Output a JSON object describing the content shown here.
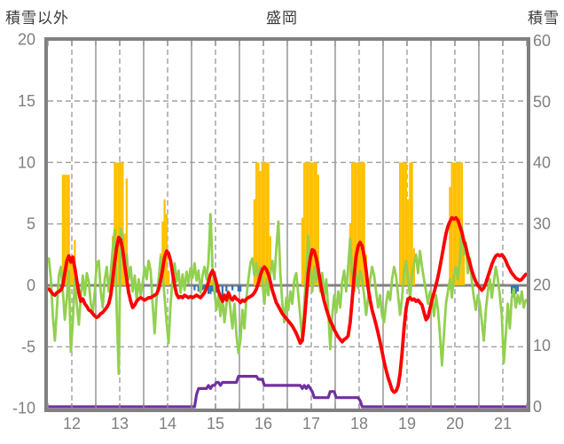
{
  "titles": {
    "left_axis": "積雪以外",
    "station": "盛岡",
    "right_axis": "積雪"
  },
  "chart_data": {
    "type": "line",
    "subtype": "combo-bar-line-dual-axis",
    "title": "盛岡",
    "x_start_day": 12,
    "days": 10,
    "x_tick_labels": [
      "12",
      "13",
      "14",
      "15",
      "16",
      "17",
      "18",
      "19",
      "20",
      "21"
    ],
    "left_axis": {
      "title": "積雪以外",
      "range": [
        -10,
        20
      ],
      "ticks": [
        20,
        15,
        10,
        5,
        0,
        -5,
        -10
      ]
    },
    "right_axis": {
      "title": "積雪",
      "range": [
        0,
        60
      ],
      "ticks": [
        60,
        50,
        40,
        30,
        20,
        10,
        0
      ]
    },
    "grid": {
      "border_color": "#808080",
      "zero_line_color": "#808080",
      "line_color": "#a0a0a0",
      "dashed": true
    },
    "series": [
      {
        "name": "sunshine",
        "type": "bar",
        "axis": "left",
        "color": "#FFC000",
        "values": [
          0,
          0,
          0,
          0,
          0,
          0,
          0,
          9,
          9,
          9,
          9,
          2.4,
          2.4,
          3.7,
          0.6,
          0,
          0,
          0,
          0,
          0,
          0,
          0,
          0,
          0,
          0,
          0,
          0,
          0,
          0,
          0,
          0,
          0,
          4,
          10,
          10,
          10,
          10,
          10,
          4.2,
          8.7,
          0,
          0,
          0,
          0,
          0,
          0,
          0,
          0,
          0,
          0,
          0,
          0,
          0,
          0,
          0,
          0,
          2.6,
          5.2,
          7,
          5.8,
          1.2,
          0,
          0,
          0,
          0,
          0,
          0,
          0,
          0,
          0,
          0,
          0,
          0,
          0,
          0,
          0,
          0,
          0,
          0,
          0,
          0,
          0.5,
          0.4,
          0,
          0,
          0,
          0,
          0,
          0,
          0,
          0,
          0,
          0,
          0,
          0,
          0,
          0,
          0,
          0,
          0,
          0,
          0,
          0,
          7,
          10,
          10,
          9.3,
          10,
          10,
          10,
          10,
          4,
          0,
          0,
          0,
          0,
          0,
          0,
          0,
          0,
          0,
          0,
          0,
          0,
          0,
          0,
          0,
          5.5,
          10,
          10,
          10,
          10,
          10,
          10,
          10,
          9,
          0,
          0,
          0,
          0,
          0,
          0,
          0,
          0,
          0,
          0,
          0,
          0,
          0,
          0,
          0,
          5,
          10,
          10,
          10,
          10,
          10,
          10,
          10,
          2.5,
          0,
          0,
          0,
          0,
          0,
          0,
          0,
          0,
          0,
          0,
          0,
          0,
          0,
          0,
          0,
          0,
          10,
          10,
          10,
          10,
          7,
          10,
          10,
          3,
          0,
          0,
          0,
          0,
          0,
          0,
          0,
          0,
          0,
          0,
          0,
          0,
          0,
          0,
          0,
          0,
          0,
          8,
          10,
          10,
          10,
          10,
          10,
          10,
          3,
          0,
          0,
          0,
          0,
          0,
          0,
          0,
          0,
          0,
          0,
          0,
          0,
          0,
          0,
          0,
          0,
          0,
          0,
          0,
          0,
          0,
          0,
          0,
          0,
          0,
          0,
          0,
          0,
          0,
          0,
          0
        ]
      },
      {
        "name": "precipitation",
        "type": "bar",
        "axis": "left",
        "direction": "down",
        "color": "#2E75B6",
        "values": [
          0,
          0,
          0,
          0,
          0,
          0,
          0,
          0,
          0,
          0,
          0,
          0,
          0,
          0,
          0,
          0,
          0,
          0,
          0,
          0,
          0,
          0,
          0,
          0,
          0,
          0,
          0,
          0,
          0,
          0,
          0,
          0,
          0,
          0,
          0,
          0,
          0,
          0,
          0,
          0,
          0,
          0,
          0,
          0,
          0,
          0,
          0,
          0,
          0,
          0,
          0,
          0,
          0,
          0,
          0,
          0,
          0,
          0,
          0,
          0,
          0,
          0,
          0,
          0,
          0,
          0,
          0,
          0,
          0,
          0,
          0,
          0,
          0,
          0.4,
          0,
          0.5,
          0,
          0.4,
          0.3,
          0,
          0.7,
          0.7,
          0.5,
          0,
          0.6,
          0.5,
          0,
          1.5,
          0,
          0.5,
          0,
          0,
          0.4,
          0,
          0,
          0.5,
          0.5,
          0,
          0,
          0,
          0,
          0,
          0,
          0,
          0,
          0,
          0,
          0,
          0,
          0,
          0,
          0,
          0,
          0,
          0,
          0,
          0,
          0,
          0,
          0,
          0,
          0,
          0,
          0,
          0,
          0,
          0,
          0,
          0,
          0,
          0,
          0,
          0,
          0,
          0,
          0,
          0,
          0,
          0,
          0,
          0,
          0,
          0,
          0,
          0,
          0,
          0,
          0,
          0,
          0,
          0,
          0,
          0,
          0,
          0,
          0,
          0,
          0,
          0,
          0,
          0,
          0,
          0,
          0,
          0,
          0,
          0,
          0,
          0,
          0,
          0,
          0,
          0,
          0,
          0,
          0,
          0,
          0,
          0,
          0,
          0,
          0,
          0,
          0,
          0,
          0,
          0,
          0,
          0,
          0,
          0,
          0,
          0,
          0,
          0,
          0,
          0,
          0,
          0,
          0,
          0,
          0,
          0,
          0,
          0,
          0,
          0,
          0,
          0,
          0,
          0,
          0,
          0,
          0,
          0,
          0,
          0,
          0,
          0,
          0,
          0,
          0,
          0,
          0,
          0,
          0,
          0,
          0,
          0,
          0,
          0,
          0,
          0.7,
          1.0,
          0.7,
          0.5,
          0,
          0,
          0,
          0
        ]
      },
      {
        "name": "green_line",
        "type": "line",
        "axis": "left",
        "color": "#92D050",
        "width": 2.8,
        "values": [
          2.2,
          0.5,
          -2.5,
          -4.5,
          -2.0,
          0.8,
          1.5,
          -0.5,
          -2.8,
          -1.0,
          1.2,
          -5.4,
          -3.0,
          0.5,
          -1.5,
          -3.2,
          -1.0,
          0.8,
          -0.8,
          1.0,
          0.3,
          -1.5,
          -2.2,
          -0.5,
          1.8,
          2.0,
          -0.5,
          -1.8,
          0.5,
          1.5,
          -0.5,
          1.0,
          3.0,
          4.5,
          -2.0,
          -7.2,
          4.6,
          3.8,
          1.5,
          2.5,
          0.5,
          1.5,
          -0.5,
          0.8,
          -1.2,
          0.5,
          -0.8,
          0.2,
          1.5,
          0.5,
          2.0,
          1.2,
          -1.5,
          -3.9,
          -1.0,
          0.5,
          2.3,
          1.0,
          -1.0,
          -3.0,
          -4.7,
          -1.5,
          0.5,
          1.8,
          0.3,
          1.2,
          -0.6,
          0.9,
          -0.4,
          1.1,
          0.2,
          1.4,
          0.6,
          1.8,
          0.4,
          1.2,
          -0.6,
          0.8,
          1.5,
          0.5,
          2.0,
          5.8,
          1.5,
          -0.5,
          -2.0,
          -0.8,
          -2.5,
          -1.0,
          -3.0,
          -1.5,
          -0.5,
          -2.0,
          -3.5,
          -1.5,
          -4.0,
          -5.5,
          -4.5,
          -2.0,
          -3.5,
          -1.0,
          0.5,
          1.8,
          2.2,
          0.8,
          1.8,
          0.5,
          1.5,
          0.3,
          -1.5,
          0.5,
          -0.8,
          1.0,
          2.0,
          0.5,
          3.0,
          5.2,
          1.0,
          -1.5,
          -3.0,
          -1.0,
          -2.0,
          -0.5,
          -1.5,
          0.5,
          1.0,
          -0.8,
          -2.5,
          -4.5,
          -1.5,
          1.0,
          4.0,
          1.5,
          -0.5,
          1.5,
          0.3,
          2.0,
          -0.5,
          1.0,
          -1.0,
          0.5,
          -2.0,
          -5.2,
          -2.5,
          -0.8,
          -2.2,
          -0.5,
          -1.8,
          0.3,
          1.2,
          -0.5,
          1.5,
          3.8,
          0.8,
          -0.5,
          1.0,
          -0.2,
          1.2,
          0.4,
          -0.8,
          -2.4,
          -1.0,
          0.5,
          1.5,
          0.8,
          -0.5,
          -1.8,
          -0.8,
          -2.5,
          -3.0,
          -1.5,
          -0.5,
          -1.2,
          0.5,
          1.5,
          0.8,
          -0.8,
          -2.4,
          -1.0,
          1.0,
          2.0,
          0.5,
          -1.0,
          0.8,
          1.8,
          2.5,
          1.0,
          2.8,
          1.5,
          0.5,
          -0.5,
          -1.5,
          -0.5,
          -1.0,
          -2.5,
          -0.8,
          -2.0,
          -4.0,
          -6.5,
          -4.0,
          -1.5,
          -0.5,
          0.5,
          -1.0,
          0.8,
          1.5,
          0.5,
          2.0,
          4.8,
          2.5,
          3.5,
          1.0,
          2.2,
          0.3,
          -1.0,
          -2.0,
          -0.8,
          -1.5,
          -3.0,
          -4.5,
          -2.0,
          -0.5,
          0.5,
          -1.0,
          0.3,
          1.5,
          0.5,
          -0.8,
          -2.5,
          -6.3,
          -4.0,
          -1.5,
          -3.5,
          -1.0,
          -0.3,
          -1.8,
          -0.8,
          -1.5,
          -0.5,
          -1.8,
          -1.2
        ]
      },
      {
        "name": "temperature",
        "type": "line",
        "axis": "left",
        "color": "#FF0000",
        "width": 3.8,
        "values": [
          -0.3,
          -0.5,
          -0.7,
          -0.8,
          -0.6,
          -0.5,
          -0.4,
          0.0,
          1.0,
          2.0,
          2.4,
          1.9,
          2.3,
          1.4,
          0.4,
          -0.6,
          -1.3,
          -1.1,
          -1.5,
          -1.7,
          -2.0,
          -2.1,
          -2.3,
          -2.5,
          -2.6,
          -2.5,
          -2.3,
          -2.2,
          -2.0,
          -1.8,
          -1.5,
          -0.8,
          0.5,
          1.9,
          3.1,
          3.9,
          3.7,
          2.9,
          1.6,
          0.5,
          -0.6,
          -1.3,
          -1.8,
          -1.6,
          -1.3,
          -1.1,
          -1.0,
          -1.1,
          -1.2,
          -1.1,
          -1.0,
          -1.0,
          -0.9,
          -0.8,
          -0.7,
          -0.3,
          0.4,
          1.3,
          2.3,
          2.8,
          2.6,
          2.0,
          1.0,
          0.0,
          -0.7,
          -1.0,
          -0.9,
          -1.0,
          -0.8,
          -0.9,
          -1.0,
          -0.9,
          -1.0,
          -0.9,
          -0.8,
          -0.9,
          -1.0,
          -0.8,
          -0.6,
          -0.2,
          0.3,
          0.9,
          1.2,
          0.8,
          0.2,
          -0.5,
          -0.9,
          -1.3,
          -0.8,
          -1.2,
          -0.6,
          -1.0,
          -1.2,
          -0.9,
          -1.1,
          -1.2,
          -1.4,
          -1.2,
          -1.3,
          -1.1,
          -1.0,
          -0.9,
          -0.8,
          -0.6,
          -0.3,
          0.2,
          0.8,
          1.3,
          1.5,
          1.3,
          0.9,
          0.3,
          -0.4,
          -0.9,
          -1.4,
          -1.7,
          -2.0,
          -2.3,
          -2.5,
          -2.7,
          -2.9,
          -3.1,
          -3.3,
          -3.6,
          -3.9,
          -4.3,
          -4.7,
          -4.5,
          -3.0,
          -1.0,
          1.0,
          2.2,
          2.9,
          2.8,
          2.2,
          1.3,
          0.3,
          -0.6,
          -1.3,
          -1.9,
          -2.4,
          -2.9,
          -3.2,
          -3.6,
          -3.9,
          -4.2,
          -4.4,
          -4.6,
          -4.4,
          -4.3,
          -4.1,
          -3.0,
          -1.2,
          0.8,
          2.4,
          3.2,
          3.5,
          3.2,
          2.4,
          1.2,
          -0.2,
          -1.2,
          -2.0,
          -2.6,
          -3.2,
          -3.9,
          -4.6,
          -5.4,
          -6.2,
          -6.9,
          -7.5,
          -8.0,
          -8.5,
          -8.7,
          -8.6,
          -8.2,
          -7.2,
          -5.5,
          -3.5,
          -1.9,
          -1.1,
          -1.0,
          -1.2,
          -1.1,
          -1.3,
          -1.2,
          -1.4,
          -1.6,
          -2.2,
          -2.8,
          -2.6,
          -1.9,
          -1.2,
          -0.6,
          0.0,
          0.7,
          1.5,
          2.4,
          3.3,
          4.2,
          4.8,
          5.2,
          5.5,
          5.4,
          5.5,
          5.3,
          4.8,
          4.3,
          3.6,
          3.1,
          2.4,
          1.8,
          1.2,
          0.7,
          0.3,
          0.0,
          -0.2,
          -0.4,
          -0.2,
          0.2,
          0.7,
          1.2,
          1.7,
          2.1,
          2.4,
          2.5,
          2.4,
          2.5,
          2.3,
          2.0,
          1.6,
          1.3,
          1.0,
          0.8,
          0.6,
          0.5,
          0.4,
          0.5,
          0.7,
          0.9
        ]
      },
      {
        "name": "snow_depth",
        "type": "line",
        "axis": "right",
        "color": "#7030A0",
        "width": 3.2,
        "values": [
          0,
          0,
          0,
          0,
          0,
          0,
          0,
          0,
          0,
          0,
          0,
          0,
          0,
          0,
          0,
          0,
          0,
          0,
          0,
          0,
          0,
          0,
          0,
          0,
          0,
          0,
          0,
          0,
          0,
          0,
          0,
          0,
          0,
          0,
          0,
          0,
          0,
          0,
          0,
          0,
          0,
          0,
          0,
          0,
          0,
          0,
          0,
          0,
          0,
          0,
          0,
          0,
          0,
          0,
          0,
          0,
          0,
          0,
          0,
          0,
          0,
          0,
          0,
          0,
          0,
          0,
          0,
          0,
          0,
          0,
          0,
          0,
          0,
          0,
          2,
          3,
          3,
          3,
          3,
          3,
          3.5,
          3,
          3.5,
          3.5,
          4,
          4,
          3.5,
          4,
          4,
          4,
          4,
          4,
          4,
          4,
          4,
          5,
          5,
          5,
          5,
          5,
          5,
          5,
          5,
          5,
          5,
          4.5,
          4.5,
          4.5,
          3.5,
          3.5,
          3.5,
          3.5,
          3.5,
          3.5,
          3.5,
          3.5,
          3.5,
          3.5,
          3.5,
          3.5,
          3.5,
          3.5,
          3.5,
          3.5,
          3.5,
          3.5,
          3.5,
          3,
          3.5,
          3,
          3.5,
          3,
          2.5,
          1.5,
          1.5,
          1.5,
          1.5,
          1.5,
          1.5,
          1.5,
          1.5,
          2.5,
          2.5,
          2.5,
          1.5,
          1.5,
          1.5,
          1.5,
          1.5,
          1.5,
          1.5,
          1.5,
          1.5,
          1.5,
          1.5,
          1.5,
          1,
          0,
          0,
          0,
          0,
          0,
          0,
          0,
          0,
          0,
          0,
          0,
          0,
          0,
          0,
          0,
          0,
          0,
          0,
          0,
          0,
          0,
          0,
          0,
          0,
          0,
          0,
          0,
          0,
          0,
          0,
          0,
          0,
          0,
          0,
          0,
          0,
          0,
          0,
          0,
          0,
          0,
          0,
          0,
          0,
          0,
          0,
          0,
          0,
          0,
          0,
          0,
          0,
          0,
          0,
          0,
          0,
          0,
          0,
          0,
          0,
          0,
          0,
          0,
          0,
          0,
          0,
          0,
          0,
          0,
          0,
          0,
          0,
          0,
          0,
          0,
          0,
          0,
          0,
          0,
          0,
          0,
          0,
          0
        ]
      }
    ]
  }
}
